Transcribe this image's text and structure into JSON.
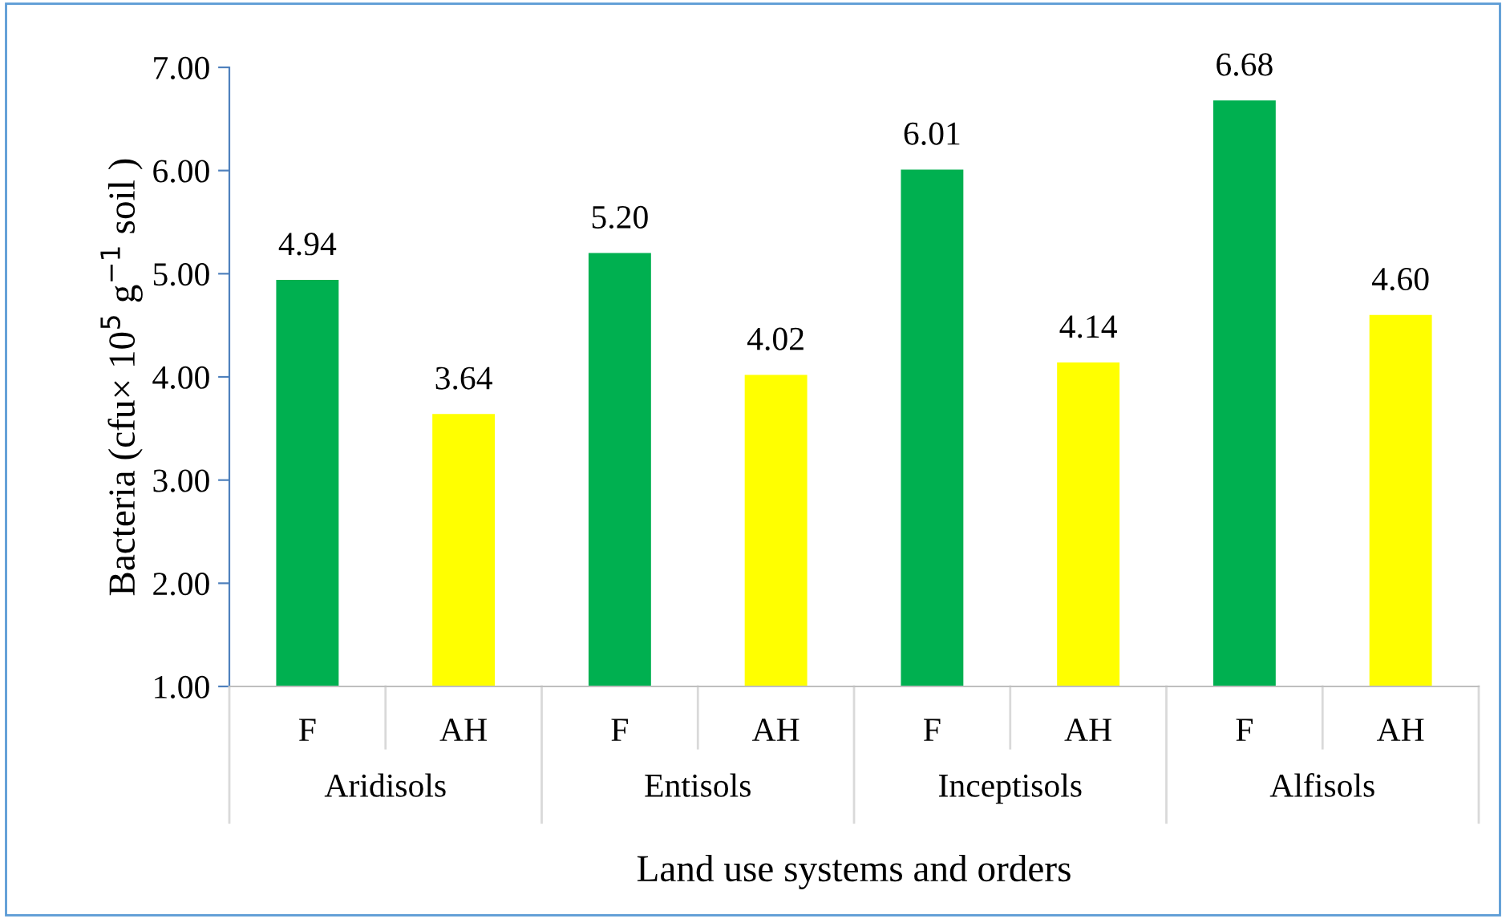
{
  "chart_data": {
    "type": "bar",
    "categories": [
      "F",
      "AH",
      "F",
      "AH",
      "F",
      "AH",
      "F",
      "AH"
    ],
    "values": [
      4.94,
      3.64,
      5.2,
      4.02,
      6.01,
      4.14,
      6.68,
      4.6
    ],
    "value_labels": [
      "4.94",
      "3.64",
      "5.20",
      "4.02",
      "6.01",
      "4.14",
      "6.68",
      "4.60"
    ],
    "colors": [
      "#00b050",
      "#ffff00",
      "#00b050",
      "#ffff00",
      "#00b050",
      "#ffff00",
      "#00b050",
      "#ffff00"
    ],
    "xlabel": "Land use systems and orders",
    "ylabel": "Bacteria (cfu× 10$^{5}$ g$^{−1}$ soil )",
    "annotations": [
      "Aridisols",
      "Entisols",
      "Inceptisols",
      "Alfisols"
    ],
    "ylim": [
      1,
      7
    ],
    "yticks": [
      {
        "value": 1,
        "label": "1.00"
      },
      {
        "value": 2,
        "label": "2.00"
      },
      {
        "value": 3,
        "label": "3.00"
      },
      {
        "value": 4,
        "label": "4.00"
      },
      {
        "value": 5,
        "label": "5.00"
      },
      {
        "value": 6,
        "label": "6.00"
      },
      {
        "value": 7,
        "label": "7.00"
      }
    ],
    "grid": false,
    "legend": false
  }
}
